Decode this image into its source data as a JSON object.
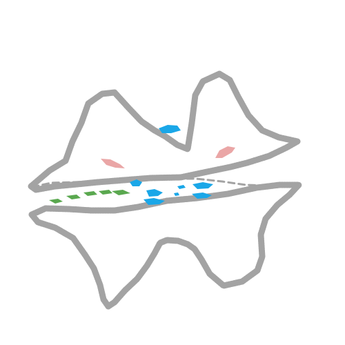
{
  "drawing": {
    "kind": "hand-drawn sketch",
    "background": "#ffffff",
    "outline_color": "#a3a3a3",
    "accent_pink": "#e9a1a1",
    "accent_blue": "#1aa7e8",
    "accent_green": "#5aa84f"
  }
}
